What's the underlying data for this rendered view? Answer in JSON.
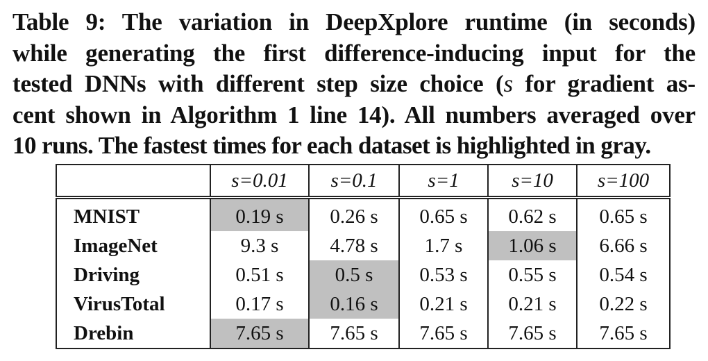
{
  "caption": {
    "line1": "Table 9: The variation in DeepXplore runtime (in seconds)",
    "line2": "while generating the first difference-inducing input for the",
    "line3_pre": "tested DNNs with different step size choice (",
    "line3_var": "s",
    "line3_post": " for gradient as-",
    "line4": "cent shown in Algorithm 1 line 14). All numbers averaged over",
    "line5": "10 runs. The fastest times for each dataset is highlighted in gray."
  },
  "table": {
    "corner": "",
    "headers": [
      "s=0.01",
      "s=0.1",
      "s=1",
      "s=10",
      "s=100"
    ],
    "rows": [
      {
        "dataset": "MNIST",
        "values": [
          "0.19 s",
          "0.26 s",
          "0.65 s",
          "0.62 s",
          "0.65 s"
        ],
        "fastest_index": 0
      },
      {
        "dataset": "ImageNet",
        "values": [
          "9.3 s",
          "4.78 s",
          "1.7 s",
          "1.06 s",
          "6.66 s"
        ],
        "fastest_index": 3
      },
      {
        "dataset": "Driving",
        "values": [
          "0.51 s",
          "0.5 s",
          "0.53 s",
          "0.55 s",
          "0.54 s"
        ],
        "fastest_index": 1
      },
      {
        "dataset": "VirusTotal",
        "values": [
          "0.17 s",
          "0.16 s",
          "0.21 s",
          "0.21 s",
          "0.22 s"
        ],
        "fastest_index": 1
      },
      {
        "dataset": "Drebin",
        "values": [
          "7.65 s",
          "7.65 s",
          "7.65 s",
          "7.65 s",
          "7.65 s"
        ],
        "fastest_index": 0
      }
    ]
  },
  "colors": {
    "highlight": "#c0c0c0",
    "text": "#111111",
    "rule": "#222222"
  }
}
